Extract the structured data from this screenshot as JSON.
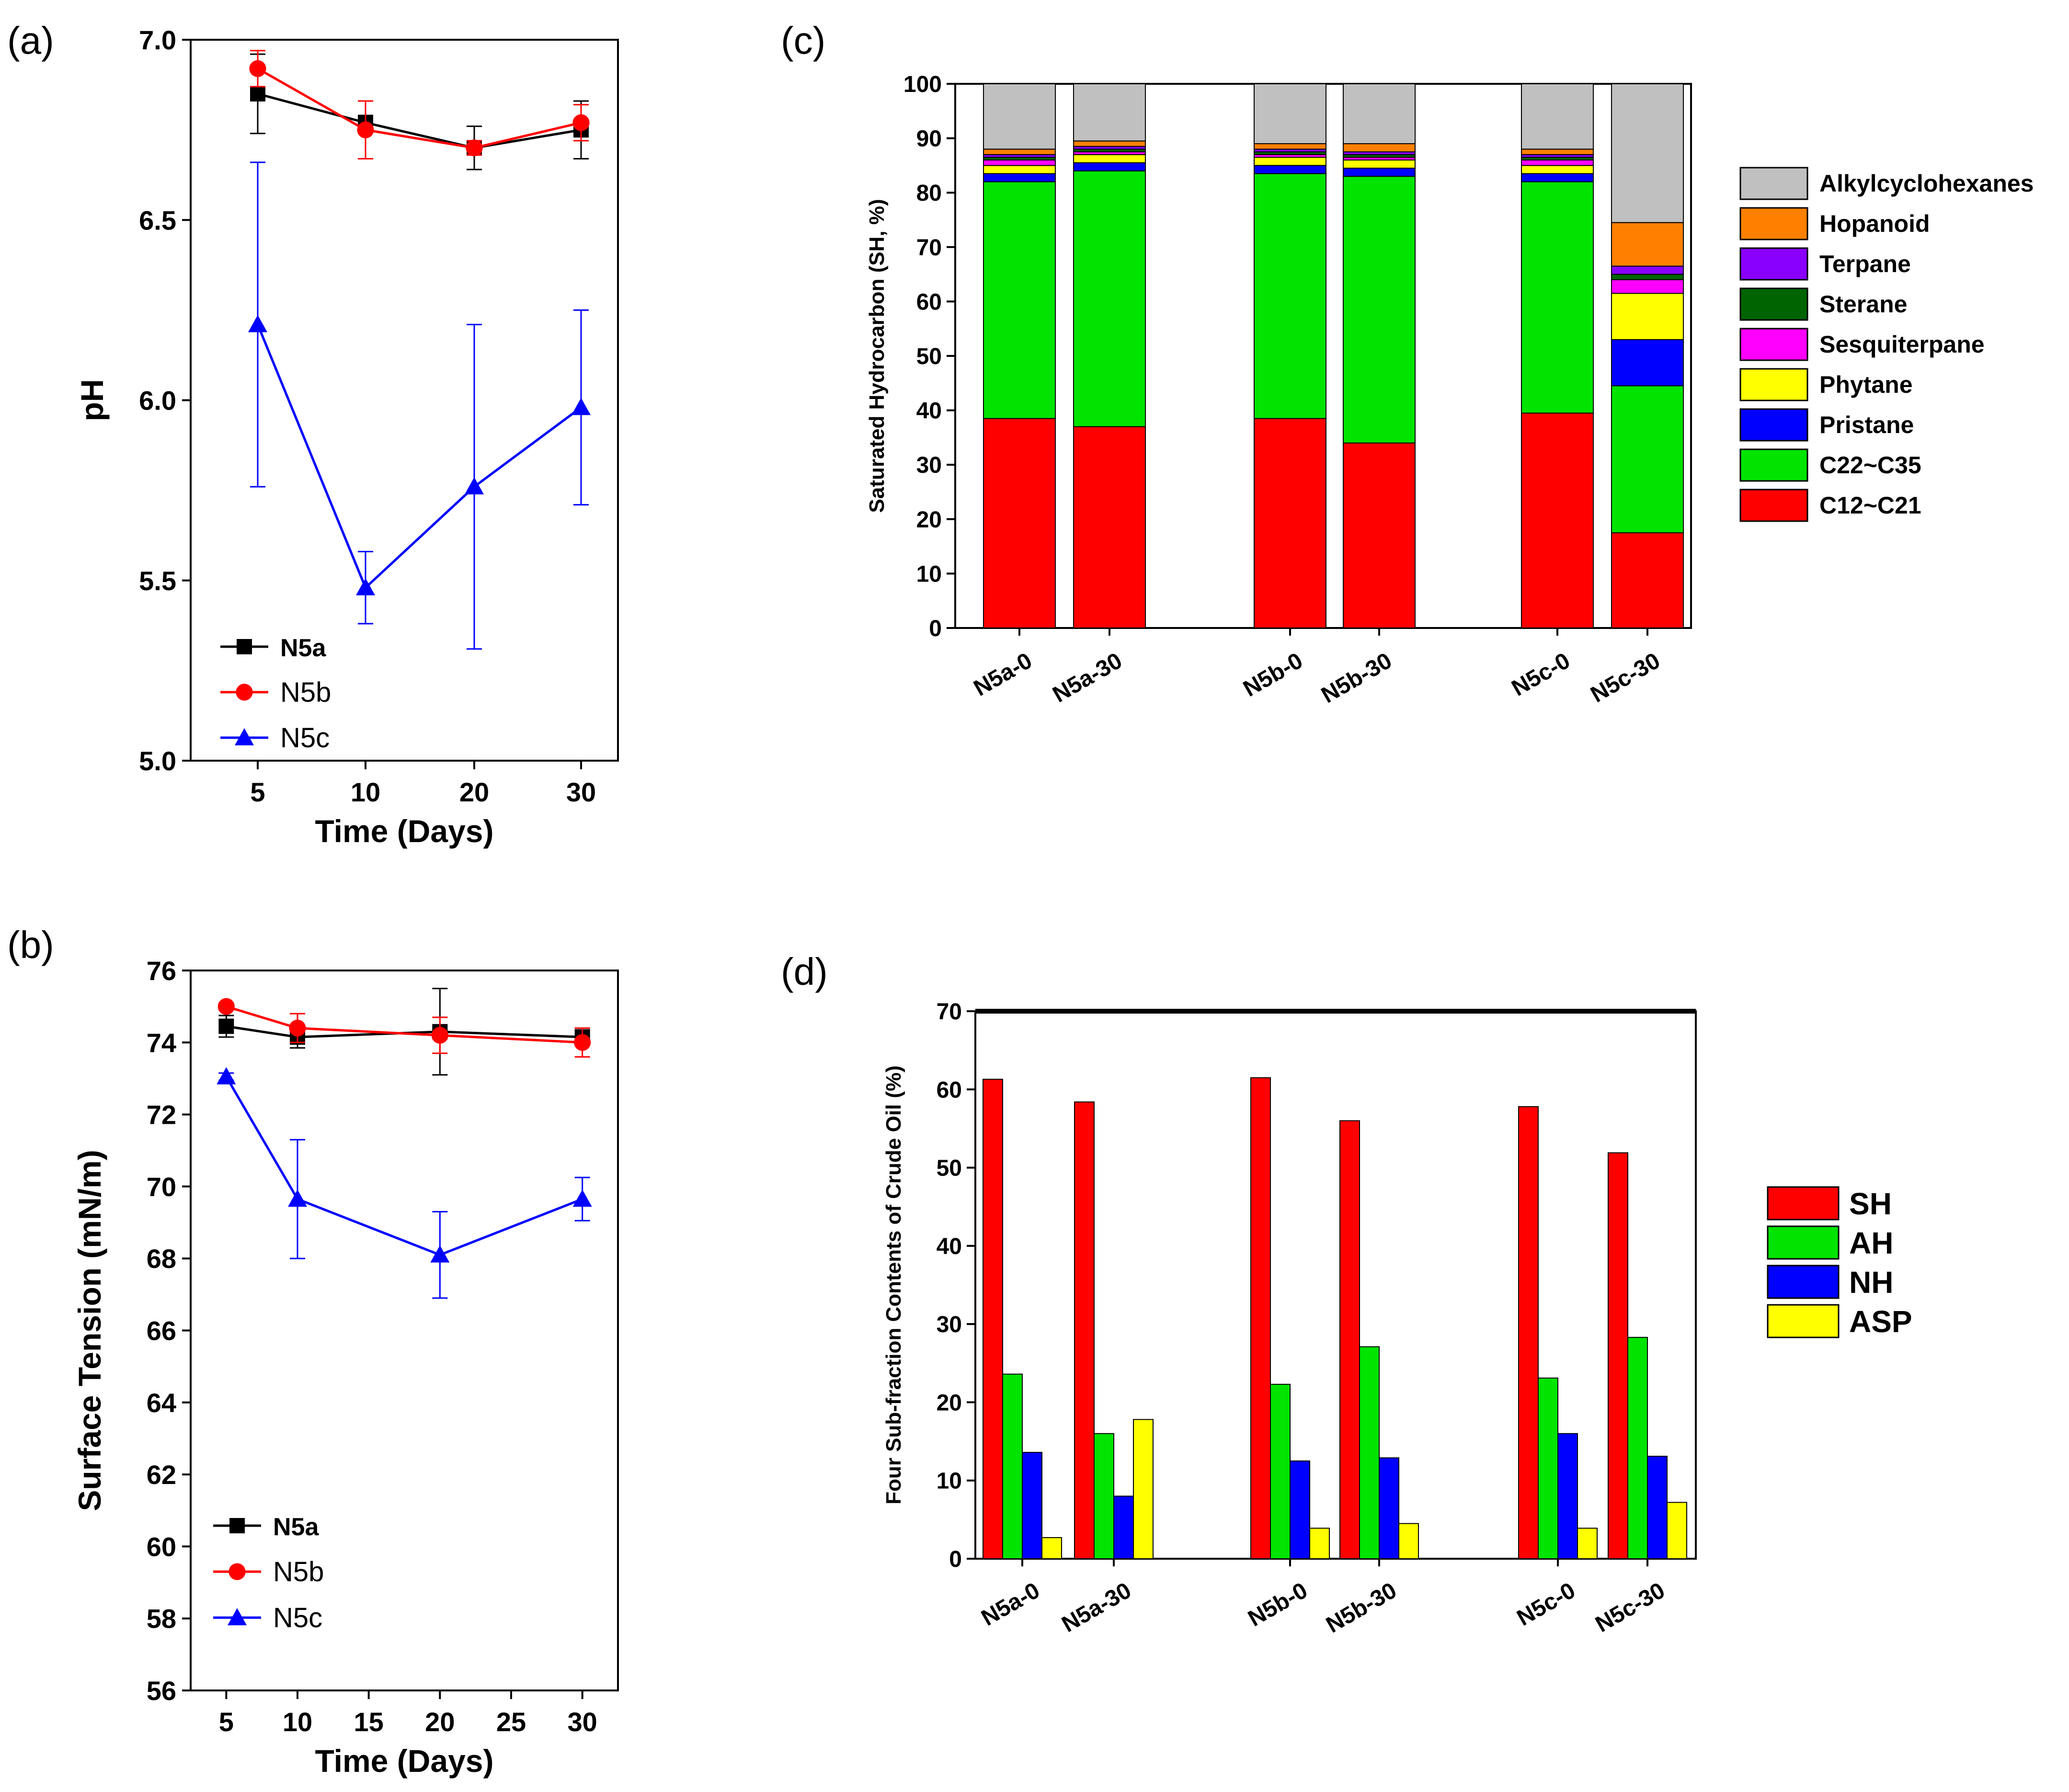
{
  "panels": {
    "a": "(a)",
    "b": "(b)",
    "c": "(c)",
    "d": "(d)"
  },
  "colors": {
    "N5a": "#000000",
    "N5b": "#ff0000",
    "N5c": "#0000ff"
  },
  "chart_data": [
    {
      "id": "a",
      "type": "line",
      "xlabel": "Time (Days)",
      "ylabel": "pH",
      "x": [
        5,
        10,
        20,
        30
      ],
      "x_ticks": [
        "5",
        "10",
        "20",
        "30"
      ],
      "ylim": [
        5.0,
        7.0
      ],
      "y_ticks": [
        "5.0",
        "5.5",
        "6.0",
        "6.5",
        "7.0"
      ],
      "legend_position": "bottom-left",
      "series": [
        {
          "name": "N5a",
          "marker": "square",
          "values": [
            6.85,
            6.77,
            6.7,
            6.75
          ],
          "errors": [
            0.11,
            0.02,
            0.06,
            0.08
          ]
        },
        {
          "name": "N5b",
          "marker": "circle",
          "values": [
            6.92,
            6.75,
            6.7,
            6.77
          ],
          "errors": [
            0.05,
            0.08,
            0.02,
            0.05
          ]
        },
        {
          "name": "N5c",
          "marker": "triangle",
          "values": [
            6.21,
            5.48,
            5.76,
            5.98
          ],
          "errors": [
            0.45,
            0.1,
            0.45,
            0.27
          ]
        }
      ]
    },
    {
      "id": "b",
      "type": "line",
      "xlabel": "Time (Days)",
      "ylabel": "Surface Tension (mN/m)",
      "xlim": [
        2.5,
        32.5
      ],
      "x_ticks": [
        "5",
        "10",
        "15",
        "20",
        "25",
        "30"
      ],
      "x": [
        5,
        10,
        20,
        30
      ],
      "ylim": [
        56,
        76
      ],
      "y_ticks": [
        "56",
        "58",
        "60",
        "62",
        "64",
        "66",
        "68",
        "70",
        "72",
        "74",
        "76"
      ],
      "legend_position": "bottom-left",
      "series": [
        {
          "name": "N5a",
          "marker": "square",
          "values": [
            74.45,
            74.15,
            74.3,
            74.15
          ],
          "errors": [
            0.3,
            0.3,
            1.2,
            0.2
          ]
        },
        {
          "name": "N5b",
          "marker": "circle",
          "values": [
            75.0,
            74.4,
            74.2,
            74.0
          ],
          "errors": [
            0.1,
            0.4,
            0.5,
            0.4
          ]
        },
        {
          "name": "N5c",
          "marker": "triangle",
          "values": [
            73.05,
            69.65,
            68.1,
            69.65
          ],
          "errors": [
            0.1,
            1.65,
            1.2,
            0.6
          ]
        }
      ]
    },
    {
      "id": "c",
      "type": "bar",
      "stacked": true,
      "ylabel": "Saturated Hydrocarbon (SH, %)",
      "ylim": [
        0,
        100
      ],
      "y_ticks": [
        "0",
        "10",
        "20",
        "30",
        "40",
        "50",
        "60",
        "70",
        "80",
        "90",
        "100"
      ],
      "categories": [
        "N5a-0",
        "N5a-30",
        "N5b-0",
        "N5b-30",
        "N5c-0",
        "N5c-30"
      ],
      "legend_position": "right",
      "series": [
        {
          "name": "C12~C21",
          "color": "#ff0000",
          "values": [
            38.5,
            37.0,
            38.5,
            34.0,
            39.5,
            17.5
          ]
        },
        {
          "name": "C22~C35",
          "color": "#00e400",
          "values": [
            43.5,
            47.0,
            45.0,
            49.0,
            42.5,
            27.0
          ]
        },
        {
          "name": "Pristane",
          "color": "#0000ff",
          "values": [
            1.5,
            1.5,
            1.5,
            1.5,
            1.5,
            8.5
          ]
        },
        {
          "name": "Phytane",
          "color": "#ffff00",
          "values": [
            1.5,
            1.5,
            1.5,
            1.5,
            1.5,
            8.5
          ]
        },
        {
          "name": "Sesquiterpane",
          "color": "#ff00ff",
          "values": [
            1.0,
            0.5,
            0.5,
            0.5,
            1.0,
            2.5
          ]
        },
        {
          "name": "Sterane",
          "color": "#006400",
          "values": [
            0.5,
            0.5,
            0.5,
            0.5,
            0.5,
            1.0
          ]
        },
        {
          "name": "Terpane",
          "color": "#8a00ff",
          "values": [
            0.5,
            0.5,
            0.5,
            0.5,
            0.5,
            1.5
          ]
        },
        {
          "name": "Hopanoid",
          "color": "#ff8000",
          "values": [
            1.0,
            1.0,
            1.0,
            1.5,
            1.0,
            8.0
          ]
        },
        {
          "name": "Alkylcyclohexanes",
          "color": "#c0c0c0",
          "values": [
            12.0,
            10.5,
            11.0,
            11.0,
            12.0,
            25.5
          ]
        }
      ]
    },
    {
      "id": "d",
      "type": "bar",
      "ylabel": "Four Sub-fraction Contents of Crude Oil (%)",
      "ylim": [
        0,
        70
      ],
      "y_ticks": [
        "0",
        "10",
        "20",
        "30",
        "40",
        "50",
        "60",
        "70"
      ],
      "categories": [
        "N5a-0",
        "N5a-30",
        "N5b-0",
        "N5b-30",
        "N5c-0",
        "N5c-30"
      ],
      "legend_position": "right",
      "series": [
        {
          "name": "SH",
          "color": "#ff0000",
          "values": [
            61.3,
            58.4,
            61.5,
            56.0,
            57.8,
            51.9
          ]
        },
        {
          "name": "AH",
          "color": "#00e400",
          "values": [
            23.6,
            16.0,
            22.3,
            27.1,
            23.1,
            28.3
          ]
        },
        {
          "name": "NH",
          "color": "#0000ff",
          "values": [
            13.6,
            8.0,
            12.5,
            12.9,
            16.0,
            13.1
          ]
        },
        {
          "name": "ASP",
          "color": "#ffff00",
          "values": [
            2.7,
            17.8,
            3.9,
            4.5,
            3.9,
            7.2
          ]
        }
      ]
    }
  ]
}
